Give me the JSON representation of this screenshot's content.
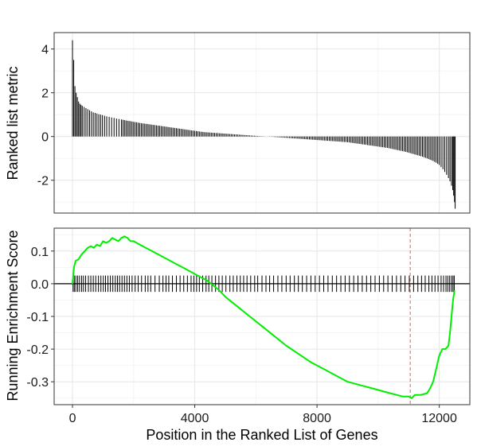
{
  "chart_data": [
    {
      "type": "bar",
      "panel": "top",
      "ylabel": "Ranked list metric",
      "xlabel": "",
      "xlim": [
        -600,
        13000
      ],
      "ylim": [
        -3.5,
        4.75
      ],
      "yticks": [
        4,
        2,
        0,
        -2
      ],
      "ytick_labels": [
        "4",
        "2",
        "0",
        "-2"
      ],
      "grid": true,
      "series": [
        {
          "values_by_position": [
            [
              0,
              4.4
            ],
            [
              40,
              3.5
            ],
            [
              80,
              2.3
            ],
            [
              120,
              2.0
            ],
            [
              160,
              1.8
            ],
            [
              200,
              1.6
            ],
            [
              240,
              1.5
            ],
            [
              280,
              1.45
            ],
            [
              320,
              1.4
            ],
            [
              380,
              1.35
            ],
            [
              440,
              1.3
            ],
            [
              500,
              1.25
            ],
            [
              560,
              1.2
            ],
            [
              620,
              1.15
            ],
            [
              680,
              1.1
            ],
            [
              740,
              1.08
            ],
            [
              800,
              1.05
            ],
            [
              860,
              1.02
            ],
            [
              920,
              1.0
            ],
            [
              980,
              0.98
            ],
            [
              1050,
              0.95
            ],
            [
              1120,
              0.92
            ],
            [
              1200,
              0.9
            ],
            [
              1280,
              0.87
            ],
            [
              1360,
              0.85
            ],
            [
              1440,
              0.82
            ],
            [
              1520,
              0.8
            ],
            [
              1600,
              0.78
            ],
            [
              1700,
              0.75
            ],
            [
              1800,
              0.72
            ],
            [
              1900,
              0.7
            ],
            [
              2000,
              0.67
            ],
            [
              2100,
              0.65
            ],
            [
              2200,
              0.62
            ],
            [
              2300,
              0.6
            ],
            [
              2400,
              0.58
            ],
            [
              2500,
              0.56
            ],
            [
              2600,
              0.54
            ],
            [
              2700,
              0.52
            ],
            [
              2800,
              0.5
            ],
            [
              2900,
              0.48
            ],
            [
              3000,
              0.46
            ],
            [
              3100,
              0.44
            ],
            [
              3200,
              0.42
            ],
            [
              3300,
              0.4
            ],
            [
              3400,
              0.38
            ],
            [
              3500,
              0.36
            ],
            [
              3600,
              0.34
            ],
            [
              3700,
              0.32
            ],
            [
              3800,
              0.3
            ],
            [
              3900,
              0.28
            ],
            [
              4000,
              0.26
            ],
            [
              4100,
              0.24
            ],
            [
              4200,
              0.22
            ],
            [
              4300,
              0.2
            ],
            [
              4400,
              0.19
            ],
            [
              4500,
              0.18
            ],
            [
              4600,
              0.17
            ],
            [
              4700,
              0.16
            ],
            [
              4800,
              0.15
            ],
            [
              4900,
              0.14
            ],
            [
              5000,
              0.13
            ],
            [
              5100,
              0.12
            ],
            [
              5200,
              0.11
            ],
            [
              5300,
              0.1
            ],
            [
              5400,
              0.09
            ],
            [
              5500,
              0.08
            ],
            [
              5600,
              0.07
            ],
            [
              5700,
              0.06
            ],
            [
              5800,
              0.05
            ],
            [
              5900,
              0.04
            ],
            [
              6000,
              0.03
            ],
            [
              6100,
              0.02
            ],
            [
              6200,
              0.01
            ],
            [
              6300,
              0.005
            ],
            [
              6400,
              -0.005
            ],
            [
              6500,
              -0.01
            ],
            [
              6600,
              -0.02
            ],
            [
              6700,
              -0.03
            ],
            [
              6800,
              -0.04
            ],
            [
              6900,
              -0.05
            ],
            [
              7000,
              -0.06
            ],
            [
              7100,
              -0.07
            ],
            [
              7200,
              -0.08
            ],
            [
              7300,
              -0.09
            ],
            [
              7400,
              -0.1
            ],
            [
              7500,
              -0.11
            ],
            [
              7600,
              -0.12
            ],
            [
              7700,
              -0.13
            ],
            [
              7800,
              -0.14
            ],
            [
              7900,
              -0.15
            ],
            [
              8000,
              -0.16
            ],
            [
              8100,
              -0.17
            ],
            [
              8200,
              -0.18
            ],
            [
              8300,
              -0.19
            ],
            [
              8400,
              -0.2
            ],
            [
              8500,
              -0.21
            ],
            [
              8600,
              -0.22
            ],
            [
              8700,
              -0.23
            ],
            [
              8800,
              -0.24
            ],
            [
              8900,
              -0.25
            ],
            [
              9000,
              -0.26
            ],
            [
              9100,
              -0.28
            ],
            [
              9200,
              -0.3
            ],
            [
              9300,
              -0.32
            ],
            [
              9400,
              -0.34
            ],
            [
              9500,
              -0.36
            ],
            [
              9600,
              -0.38
            ],
            [
              9700,
              -0.4
            ],
            [
              9800,
              -0.42
            ],
            [
              9900,
              -0.44
            ],
            [
              10000,
              -0.46
            ],
            [
              10100,
              -0.48
            ],
            [
              10200,
              -0.5
            ],
            [
              10300,
              -0.52
            ],
            [
              10400,
              -0.55
            ],
            [
              10500,
              -0.58
            ],
            [
              10600,
              -0.61
            ],
            [
              10700,
              -0.64
            ],
            [
              10800,
              -0.67
            ],
            [
              10900,
              -0.7
            ],
            [
              11000,
              -0.74
            ],
            [
              11100,
              -0.78
            ],
            [
              11200,
              -0.82
            ],
            [
              11300,
              -0.86
            ],
            [
              11400,
              -0.9
            ],
            [
              11500,
              -0.95
            ],
            [
              11600,
              -1.0
            ],
            [
              11700,
              -1.06
            ],
            [
              11800,
              -1.12
            ],
            [
              11900,
              -1.2
            ],
            [
              12000,
              -1.3
            ],
            [
              12060,
              -1.4
            ],
            [
              12120,
              -1.5
            ],
            [
              12180,
              -1.62
            ],
            [
              12240,
              -1.75
            ],
            [
              12300,
              -1.9
            ],
            [
              12350,
              -2.05
            ],
            [
              12400,
              -2.25
            ],
            [
              12440,
              -2.45
            ],
            [
              12470,
              -2.7
            ],
            [
              12500,
              -3.0
            ],
            [
              12520,
              -3.3
            ]
          ]
        }
      ]
    },
    {
      "type": "line",
      "panel": "bottom",
      "ylabel": "Running Enrichment Score",
      "xlabel": "Position in the Ranked List of Genes",
      "xlim": [
        -600,
        13000
      ],
      "ylim": [
        -0.37,
        0.17
      ],
      "xticks": [
        0,
        4000,
        8000,
        12000
      ],
      "xtick_labels": [
        "0",
        "4000",
        "8000",
        "12000"
      ],
      "yticks": [
        0.1,
        0.0,
        -0.1,
        -0.2,
        -0.3
      ],
      "ytick_labels": [
        "0.1",
        "0.0",
        "-0.1",
        "-0.2",
        "-0.3"
      ],
      "grid": true,
      "colors": {
        "enrichment_line": "#00ee00",
        "zero_line": "#000000",
        "peak_marker": "#e06060",
        "hits": "#000000"
      },
      "peak_position": 11050,
      "series": [
        {
          "x": [
            0,
            50,
            100,
            200,
            300,
            400,
            500,
            600,
            700,
            800,
            900,
            1000,
            1100,
            1200,
            1300,
            1400,
            1500,
            1600,
            1700,
            1800,
            1900,
            2000,
            2200,
            2400,
            2600,
            2800,
            3000,
            3200,
            3400,
            3600,
            3800,
            4000,
            4200,
            4400,
            4600,
            4800,
            5000,
            5400,
            5800,
            6200,
            6600,
            7000,
            7400,
            7800,
            8200,
            8600,
            9000,
            9400,
            9800,
            10200,
            10600,
            10800,
            11000,
            11100,
            11200,
            11400,
            11600,
            11700,
            11800,
            11900,
            12000,
            12100,
            12200,
            12300,
            12350,
            12400,
            12450,
            12500
          ],
          "y": [
            0.0,
            0.05,
            0.07,
            0.075,
            0.09,
            0.1,
            0.11,
            0.115,
            0.11,
            0.12,
            0.115,
            0.13,
            0.125,
            0.13,
            0.14,
            0.135,
            0.13,
            0.14,
            0.145,
            0.14,
            0.13,
            0.13,
            0.12,
            0.11,
            0.1,
            0.09,
            0.08,
            0.07,
            0.06,
            0.05,
            0.04,
            0.03,
            0.02,
            0.01,
            -0.005,
            -0.02,
            -0.04,
            -0.07,
            -0.1,
            -0.13,
            -0.16,
            -0.19,
            -0.215,
            -0.24,
            -0.26,
            -0.28,
            -0.3,
            -0.31,
            -0.32,
            -0.33,
            -0.34,
            -0.345,
            -0.345,
            -0.35,
            -0.34,
            -0.34,
            -0.335,
            -0.32,
            -0.3,
            -0.26,
            -0.22,
            -0.2,
            -0.2,
            -0.19,
            -0.15,
            -0.1,
            -0.05,
            -0.02
          ]
        }
      ],
      "hit_positions": [
        20,
        60,
        110,
        170,
        230,
        300,
        360,
        430,
        520,
        600,
        680,
        760,
        850,
        930,
        1010,
        1080,
        1160,
        1240,
        1320,
        1400,
        1470,
        1540,
        1620,
        1700,
        1780,
        1860,
        1950,
        2050,
        2150,
        2260,
        2380,
        2470,
        2560,
        2700,
        2840,
        2960,
        3060,
        3150,
        3270,
        3400,
        3520,
        3640,
        3760,
        3880,
        3970,
        4060,
        4150,
        4260,
        4370,
        4460,
        4560,
        4680,
        4790,
        4900,
        5020,
        5150,
        5260,
        5380,
        5490,
        5600,
        5710,
        5830,
        5960,
        6060,
        6200,
        6330,
        6450,
        6580,
        6720,
        6850,
        6990,
        7120,
        7260,
        7390,
        7520,
        7660,
        7800,
        7940,
        8080,
        8220,
        8360,
        8500,
        8640,
        8780,
        8920,
        9060,
        9200,
        9340,
        9480,
        9620,
        9760,
        9900,
        10040,
        10180,
        10320,
        10460,
        10600,
        10740,
        10880,
        11020,
        11160,
        11300,
        11420,
        11540,
        11660,
        11760,
        11860,
        11960,
        12060,
        12140,
        12220,
        12280,
        12340,
        12400,
        12450,
        12490
      ]
    }
  ]
}
